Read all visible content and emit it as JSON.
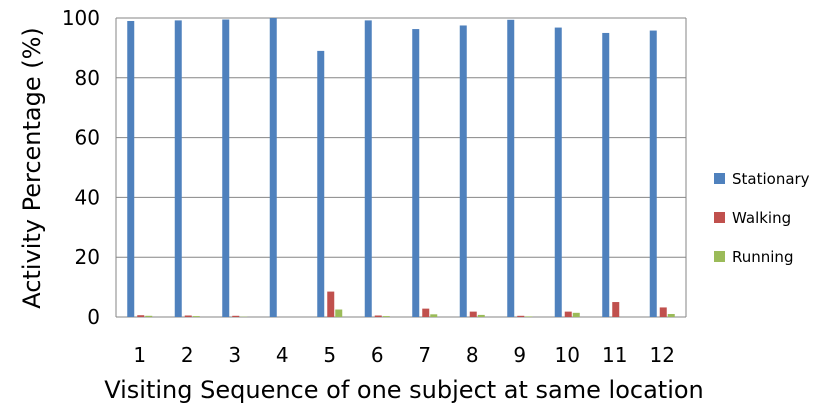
{
  "chart_data": {
    "type": "bar",
    "title": "",
    "xlabel": "Visiting Sequence of one subject at same location",
    "ylabel": "Activity Percentage (%)",
    "categories": [
      "1",
      "2",
      "3",
      "4",
      "5",
      "6",
      "7",
      "8",
      "9",
      "10",
      "11",
      "12"
    ],
    "ylim": [
      0,
      100
    ],
    "yticks": [
      0,
      20,
      40,
      60,
      80,
      100
    ],
    "grid": "horizontal",
    "legend_position": "right",
    "series": [
      {
        "name": "Stationary",
        "color": "#4F81BD",
        "values": [
          99,
          99.2,
          99.5,
          100,
          89,
          99.2,
          96.3,
          97.5,
          99.4,
          96.8,
          95,
          95.8
        ]
      },
      {
        "name": "Walking",
        "color": "#C0504D",
        "values": [
          0.6,
          0.5,
          0.4,
          0,
          8.5,
          0.5,
          2.8,
          1.8,
          0.4,
          1.8,
          5,
          3.2
        ]
      },
      {
        "name": "Running",
        "color": "#9BBB59",
        "values": [
          0.4,
          0.3,
          0.1,
          0,
          2.5,
          0.3,
          0.9,
          0.7,
          0.2,
          1.4,
          0,
          1
        ]
      }
    ]
  }
}
